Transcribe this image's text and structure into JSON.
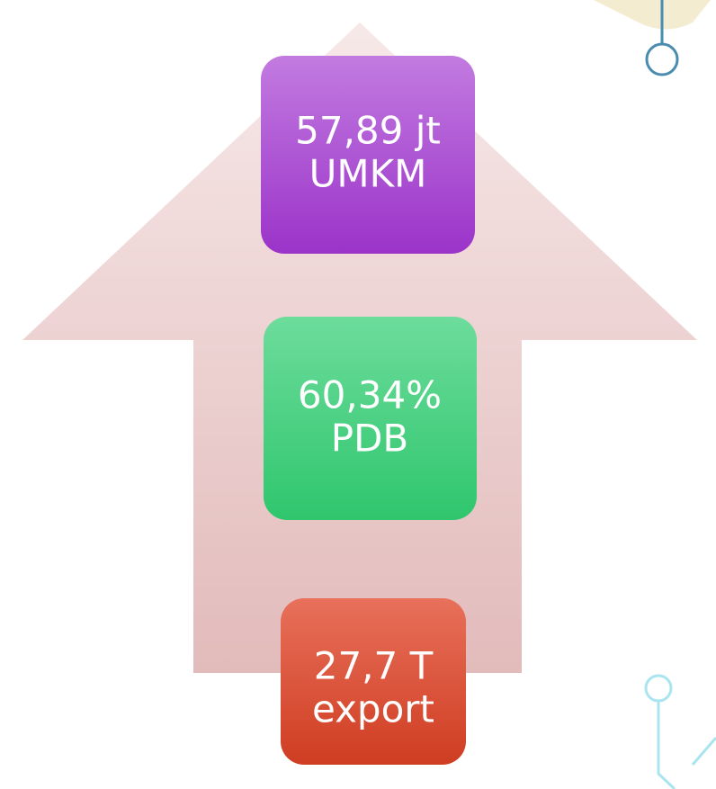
{
  "boxes": [
    {
      "lines": [
        "57,89 jt",
        "UMKM"
      ]
    },
    {
      "lines": [
        "60,34%",
        "PDB"
      ]
    },
    {
      "lines": [
        "27,7 T",
        "export"
      ]
    }
  ]
}
